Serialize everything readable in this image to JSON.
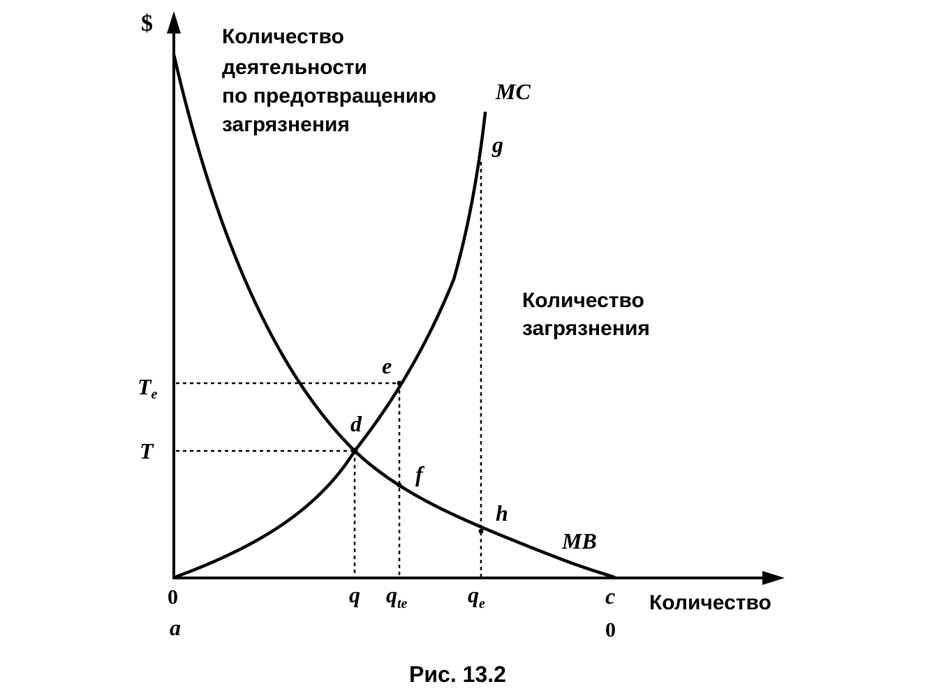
{
  "axes": {
    "y_label": "$",
    "x_label": "Количество",
    "origin_top": "0",
    "origin_bottom": "a",
    "end_top": "c",
    "end_bottom": "0"
  },
  "annotations": {
    "activity_lines": [
      "Количество",
      "деятельности",
      "по предотвращению",
      "загрязнения"
    ],
    "pollution_lines": [
      "Количество",
      "загрязнения"
    ]
  },
  "curves": {
    "mc": "MC",
    "mb": "MB"
  },
  "points": {
    "d": "d",
    "e": "e",
    "f": "f",
    "g": "g",
    "h": "h"
  },
  "levels": {
    "T": "T",
    "Te_main": "T",
    "Te_sub": "e"
  },
  "ticks": {
    "q": "q",
    "qte_main": "q",
    "qte_sub": "te",
    "qe_main": "q",
    "qe_sub": "e"
  },
  "caption": "Рис. 13.2"
}
